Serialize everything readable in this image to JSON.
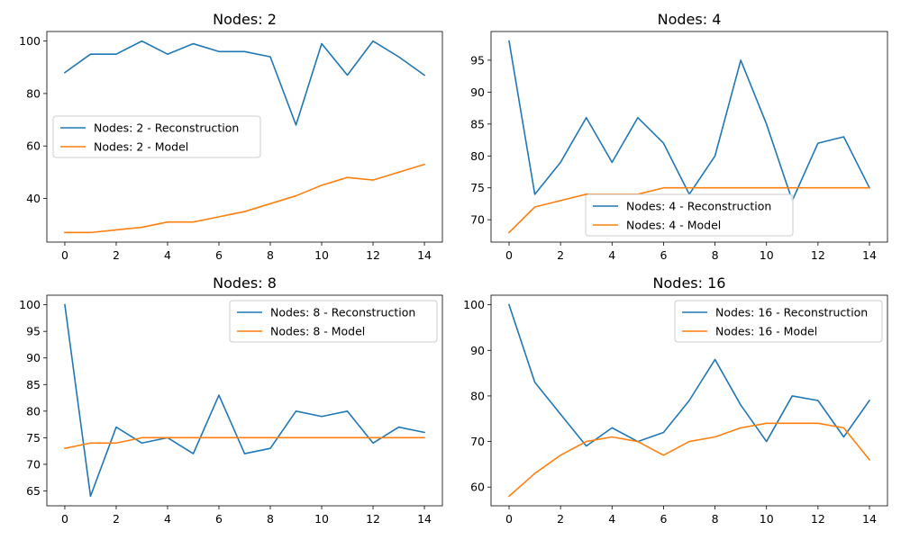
{
  "chart_data": [
    {
      "type": "line",
      "title": "Nodes: 2",
      "xlabel": "",
      "ylabel": "",
      "x": [
        0,
        1,
        2,
        3,
        4,
        5,
        6,
        7,
        8,
        9,
        10,
        11,
        12,
        13,
        14
      ],
      "xticks": [
        0,
        2,
        4,
        6,
        8,
        10,
        12,
        14
      ],
      "xlim": [
        -0.7,
        14.7
      ],
      "yticks": [
        40,
        60,
        80,
        100
      ],
      "ylim": [
        23.35,
        103.65
      ],
      "legend_loc": "center-left",
      "series": [
        {
          "name": "Nodes: 2 - Reconstruction",
          "color": "#1f77b4",
          "values": [
            88,
            95,
            95,
            100,
            95,
            99,
            96,
            96,
            94,
            68,
            99,
            87,
            100,
            94,
            87
          ]
        },
        {
          "name": "Nodes: 2 - Model",
          "color": "#ff7f0e",
          "values": [
            27,
            27,
            28,
            29,
            31,
            31,
            33,
            35,
            38,
            41,
            45,
            48,
            47,
            50,
            53
          ]
        }
      ]
    },
    {
      "type": "line",
      "title": "Nodes: 4",
      "xlabel": "",
      "ylabel": "",
      "x": [
        0,
        1,
        2,
        3,
        4,
        5,
        6,
        7,
        8,
        9,
        10,
        11,
        12,
        13,
        14
      ],
      "xticks": [
        0,
        2,
        4,
        6,
        8,
        10,
        12,
        14
      ],
      "xlim": [
        -0.7,
        14.7
      ],
      "yticks": [
        70,
        75,
        80,
        85,
        90,
        95
      ],
      "ylim": [
        66.5,
        99.5
      ],
      "legend_loc": "lower-center",
      "series": [
        {
          "name": "Nodes: 4 - Reconstruction",
          "color": "#1f77b4",
          "values": [
            98,
            74,
            79,
            86,
            79,
            86,
            82,
            74,
            80,
            95,
            85,
            73,
            82,
            83,
            75
          ]
        },
        {
          "name": "Nodes: 4 - Model",
          "color": "#ff7f0e",
          "values": [
            68,
            72,
            73,
            74,
            74,
            74,
            75,
            75,
            75,
            75,
            75,
            75,
            75,
            75,
            75
          ]
        }
      ]
    },
    {
      "type": "line",
      "title": "Nodes: 8",
      "xlabel": "",
      "ylabel": "",
      "x": [
        0,
        1,
        2,
        3,
        4,
        5,
        6,
        7,
        8,
        9,
        10,
        11,
        12,
        13,
        14
      ],
      "xticks": [
        0,
        2,
        4,
        6,
        8,
        10,
        12,
        14
      ],
      "xlim": [
        -0.7,
        14.7
      ],
      "yticks": [
        65,
        70,
        75,
        80,
        85,
        90,
        95,
        100
      ],
      "ylim": [
        62.2,
        101.8
      ],
      "legend_loc": "upper-right",
      "series": [
        {
          "name": "Nodes: 8 - Reconstruction",
          "color": "#1f77b4",
          "values": [
            100,
            64,
            77,
            74,
            75,
            72,
            83,
            72,
            73,
            80,
            79,
            80,
            74,
            77,
            76
          ]
        },
        {
          "name": "Nodes: 8 - Model",
          "color": "#ff7f0e",
          "values": [
            73,
            74,
            74,
            75,
            75,
            75,
            75,
            75,
            75,
            75,
            75,
            75,
            75,
            75,
            75
          ]
        }
      ]
    },
    {
      "type": "line",
      "title": "Nodes: 16",
      "xlabel": "",
      "ylabel": "",
      "x": [
        0,
        1,
        2,
        3,
        4,
        5,
        6,
        7,
        8,
        9,
        10,
        11,
        12,
        13,
        14
      ],
      "xticks": [
        0,
        2,
        4,
        6,
        8,
        10,
        12,
        14
      ],
      "xlim": [
        -0.7,
        14.7
      ],
      "yticks": [
        60,
        70,
        80,
        90,
        100
      ],
      "ylim": [
        55.9,
        102.1
      ],
      "legend_loc": "upper-right",
      "series": [
        {
          "name": "Nodes: 16 - Reconstruction",
          "color": "#1f77b4",
          "values": [
            100,
            83,
            76,
            69,
            73,
            70,
            72,
            79,
            88,
            78,
            70,
            80,
            79,
            71,
            79
          ]
        },
        {
          "name": "Nodes: 16 - Model",
          "color": "#ff7f0e",
          "values": [
            58,
            63,
            67,
            70,
            71,
            70,
            67,
            70,
            71,
            73,
            74,
            74,
            74,
            73,
            66
          ]
        }
      ]
    }
  ]
}
